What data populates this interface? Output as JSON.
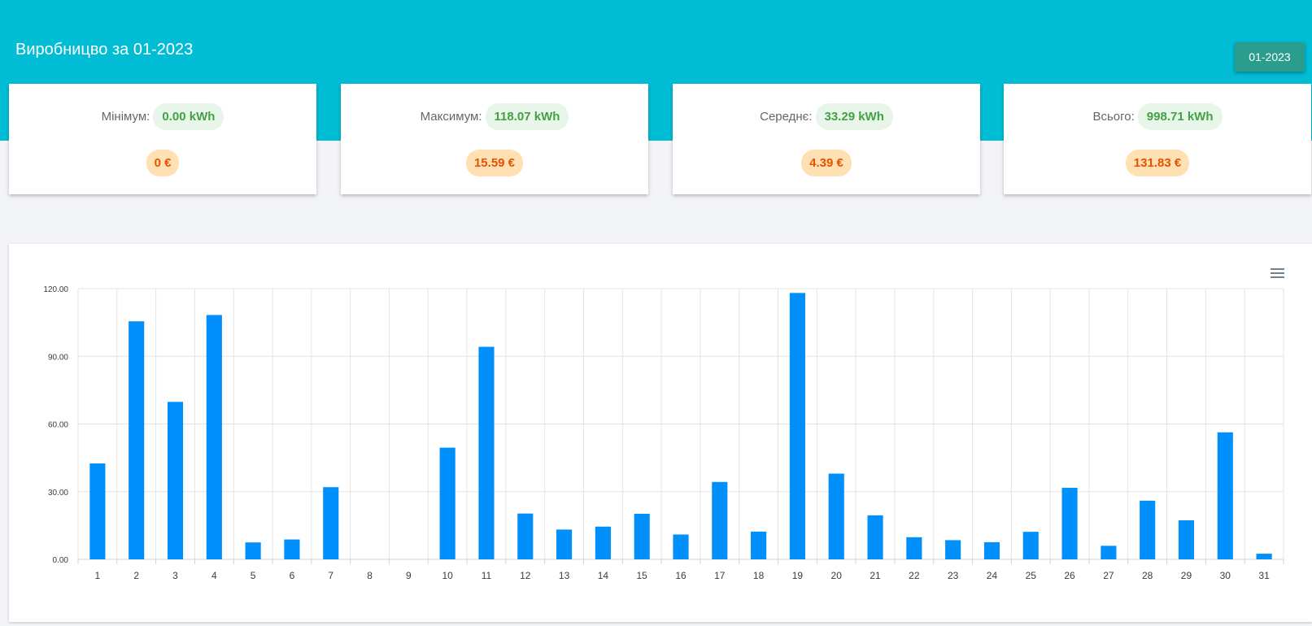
{
  "header": {
    "title": "Виробницво за 01-2023",
    "period_button": "01-2023"
  },
  "cards": [
    {
      "label": "Мінімум:",
      "energy": "0.00 kWh",
      "cost": "0 €"
    },
    {
      "label": "Максимум:",
      "energy": "118.07 kWh",
      "cost": "15.59 €"
    },
    {
      "label": "Середнє:",
      "energy": "33.29 kWh",
      "cost": "4.39 €"
    },
    {
      "label": "Всього:",
      "energy": "998.71 kWh",
      "cost": "131.83 €"
    }
  ],
  "chart_menu_icon": "hamburger-menu-icon",
  "colors": {
    "header": "#00bcd4",
    "button": "#2a9d8f",
    "bar": "#008ffb",
    "energy_pill_text": "#43a047",
    "cost_pill_text": "#e65100"
  },
  "chart_data": {
    "type": "bar",
    "categories": [
      "1",
      "2",
      "3",
      "4",
      "5",
      "6",
      "7",
      "8",
      "9",
      "10",
      "11",
      "12",
      "13",
      "14",
      "15",
      "16",
      "17",
      "18",
      "19",
      "20",
      "21",
      "22",
      "23",
      "24",
      "25",
      "26",
      "27",
      "28",
      "29",
      "30",
      "31"
    ],
    "values": [
      42.5,
      105.5,
      69.8,
      108.3,
      7.5,
      8.8,
      32.0,
      0,
      0,
      49.5,
      94.2,
      20.3,
      13.2,
      14.5,
      20.2,
      11.0,
      34.3,
      12.3,
      118.07,
      38.0,
      19.5,
      9.8,
      8.5,
      7.6,
      12.2,
      31.7,
      6.0,
      26.0,
      17.3,
      56.3,
      2.5
    ],
    "ylim": [
      0,
      120
    ],
    "yticks": [
      "0.00",
      "30.00",
      "60.00",
      "90.00",
      "120.00"
    ],
    "ytick_values": [
      0,
      30,
      60,
      90,
      120
    ],
    "grid": true,
    "xlabel": "",
    "ylabel": ""
  }
}
